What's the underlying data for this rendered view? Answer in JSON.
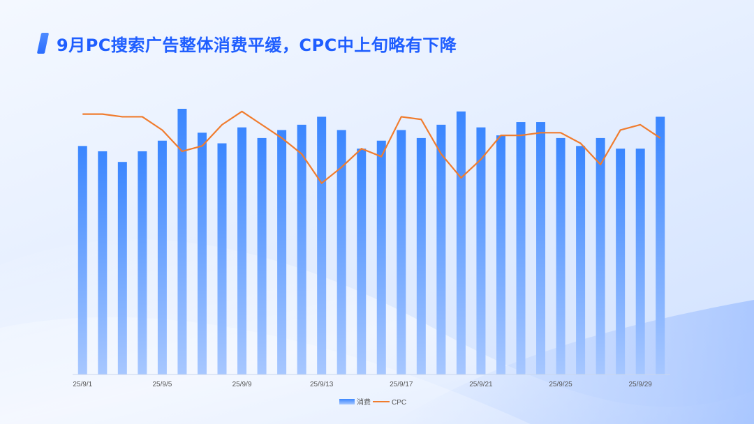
{
  "header": {
    "title": "9月PC搜索广告整体消费平缓，CPC中上旬略有下降"
  },
  "colors": {
    "bar_top": "#3a86ff",
    "bar_bottom": "#a7c7ff",
    "line": "#f07c2e",
    "title": "#1f5eff",
    "axis_text": "#555555"
  },
  "chart_data": {
    "type": "bar",
    "title": "",
    "xlabel": "",
    "ylabel": "",
    "categories": [
      "25/9/1",
      "25/9/2",
      "25/9/3",
      "25/9/4",
      "25/9/5",
      "25/9/6",
      "25/9/7",
      "25/9/8",
      "25/9/9",
      "25/9/10",
      "25/9/11",
      "25/9/12",
      "25/9/13",
      "25/9/14",
      "25/9/15",
      "25/9/16",
      "25/9/17",
      "25/9/18",
      "25/9/19",
      "25/9/20",
      "25/9/21",
      "25/9/22",
      "25/9/23",
      "25/9/24",
      "25/9/25",
      "25/9/26",
      "25/9/27",
      "25/9/28",
      "25/9/29",
      "25/9/30"
    ],
    "tick_labels_shown": [
      "25/9/1",
      "25/9/5",
      "25/9/9",
      "25/9/13",
      "25/9/17",
      "25/9/21",
      "25/9/25",
      "25/9/29"
    ],
    "series": [
      {
        "name": "消费",
        "type": "bar",
        "values": [
          86,
          84,
          80,
          84,
          88,
          100,
          91,
          87,
          93,
          89,
          92,
          94,
          97,
          92,
          85,
          88,
          92,
          89,
          94,
          99,
          93,
          90,
          95,
          95,
          89,
          86,
          89,
          85,
          85,
          97
        ]
      },
      {
        "name": "CPC",
        "type": "line",
        "values": [
          98,
          98,
          97,
          97,
          92,
          84,
          86,
          94,
          99,
          94,
          89,
          83,
          72,
          78,
          85,
          82,
          97,
          96,
          83,
          74,
          81,
          90,
          90,
          91,
          91,
          87,
          79,
          92,
          94,
          89
        ]
      }
    ],
    "ylim": [
      0,
      100
    ],
    "grid": false,
    "legend": "bottom-center"
  },
  "legend": {
    "items": [
      "消费",
      "CPC"
    ]
  }
}
